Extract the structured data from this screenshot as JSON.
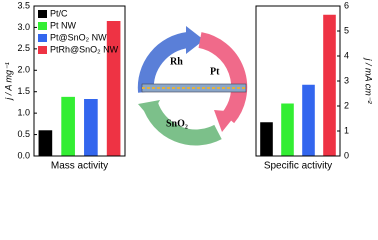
{
  "chart_data": [
    {
      "type": "bar",
      "ylabel": "j / A mg⁻¹",
      "xlabel": "Mass activity",
      "ylim": [
        0,
        3.5
      ],
      "yticks": [
        {
          "value": 0,
          "label": "0.0"
        },
        0.5,
        {
          "value": 1,
          "label": "1.0"
        },
        1.5,
        {
          "value": 2,
          "label": "2.0"
        },
        2.5,
        {
          "value": 3,
          "label": "3.0"
        },
        3.5
      ],
      "axis_side": "left",
      "legend": "upper left",
      "series": [
        {
          "name": "Pt/C",
          "color": "#000000",
          "values": [
            0.6
          ]
        },
        {
          "name": "Pt NW",
          "color": "#33ee33",
          "values": [
            1.38
          ]
        },
        {
          "name": "Pt@SnO₂ NW",
          "color": "#3366ee",
          "values": [
            1.33
          ]
        },
        {
          "name": "PtRh@SnO₂ NW",
          "color": "#ee3344",
          "values": [
            3.15
          ]
        }
      ]
    },
    {
      "type": "bar",
      "ylabel": "j / mA cm⁻²",
      "xlabel": "Specific activity",
      "ylim": [
        0,
        6
      ],
      "yticks": [
        0,
        1,
        2,
        3,
        4,
        5,
        6
      ],
      "axis_side": "right",
      "values": [
        1.35,
        2.1,
        2.85,
        5.65
      ],
      "colors": [
        "#000000",
        "#33ee33",
        "#3366ee",
        "#ee3344"
      ]
    }
  ],
  "diagram": {
    "labels": [
      "Rh",
      "Pt",
      "SnO₂"
    ]
  }
}
